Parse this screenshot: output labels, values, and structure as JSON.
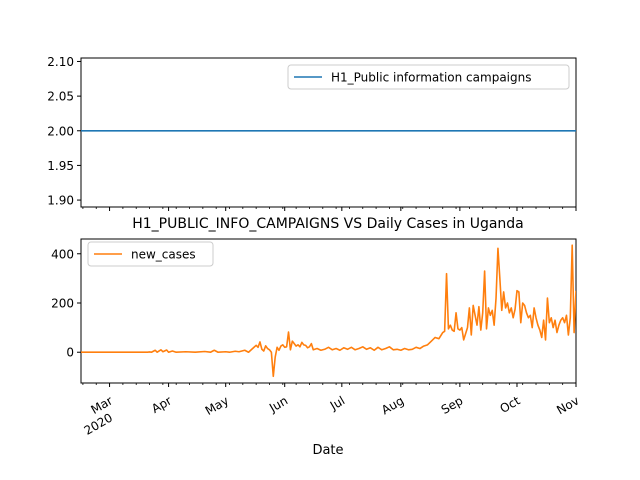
{
  "chart_data": [
    {
      "type": "line",
      "title": "",
      "xlabel": "",
      "ylabel": "",
      "ylim": [
        1.89,
        2.105
      ],
      "yticks": [
        "1.90",
        "1.95",
        "2.00",
        "2.05",
        "2.10"
      ],
      "ytick_values": [
        1.9,
        1.95,
        2.0,
        2.05,
        2.1
      ],
      "x_range": [
        "2020-02-15",
        "2020-11-01"
      ],
      "x": [
        "2020-02-15",
        "2020-11-01"
      ],
      "series": [
        {
          "name": "H1_Public information campaigns",
          "color": "#1f77b4",
          "values": [
            2.0,
            2.0
          ]
        }
      ],
      "legend": "upper right",
      "grid": false
    },
    {
      "type": "line",
      "title": "H1_PUBLIC_INFO_CAMPAIGNS VS Daily Cases in Uganda",
      "xlabel": "Date",
      "ylabel": "",
      "ylim": [
        -125,
        460
      ],
      "yticks": [
        "0",
        "200",
        "400"
      ],
      "ytick_values": [
        0,
        200,
        400
      ],
      "x_range": [
        "2020-02-15",
        "2020-11-01"
      ],
      "xtick_labels": [
        {
          "date": "2020-03-01",
          "label": "Mar",
          "sub": "2020"
        },
        {
          "date": "2020-04-01",
          "label": "Apr"
        },
        {
          "date": "2020-05-01",
          "label": "May"
        },
        {
          "date": "2020-06-01",
          "label": "Jun"
        },
        {
          "date": "2020-07-01",
          "label": "Jul"
        },
        {
          "date": "2020-08-01",
          "label": "Aug"
        },
        {
          "date": "2020-09-01",
          "label": "Sep"
        },
        {
          "date": "2020-10-01",
          "label": "Oct"
        },
        {
          "date": "2020-11-01",
          "label": "Nov"
        }
      ],
      "legend": "upper left",
      "grid": false,
      "series": [
        {
          "name": "new_cases",
          "color": "#ff7f0e",
          "points": [
            [
              "2020-02-15",
              0
            ],
            [
              "2020-03-21",
              0
            ],
            [
              "2020-03-22",
              1
            ],
            [
              "2020-03-23",
              0
            ],
            [
              "2020-03-25",
              8
            ],
            [
              "2020-03-26",
              0
            ],
            [
              "2020-03-28",
              10
            ],
            [
              "2020-03-29",
              2
            ],
            [
              "2020-03-31",
              9
            ],
            [
              "2020-04-01",
              0
            ],
            [
              "2020-04-03",
              5
            ],
            [
              "2020-04-05",
              0
            ],
            [
              "2020-04-10",
              2
            ],
            [
              "2020-04-15",
              0
            ],
            [
              "2020-04-20",
              3
            ],
            [
              "2020-04-23",
              0
            ],
            [
              "2020-04-25",
              8
            ],
            [
              "2020-04-27",
              0
            ],
            [
              "2020-05-01",
              2
            ],
            [
              "2020-05-03",
              0
            ],
            [
              "2020-05-06",
              4
            ],
            [
              "2020-05-08",
              2
            ],
            [
              "2020-05-11",
              8
            ],
            [
              "2020-05-13",
              0
            ],
            [
              "2020-05-15",
              14
            ],
            [
              "2020-05-17",
              28
            ],
            [
              "2020-05-18",
              20
            ],
            [
              "2020-05-19",
              42
            ],
            [
              "2020-05-20",
              12
            ],
            [
              "2020-05-21",
              5
            ],
            [
              "2020-05-22",
              26
            ],
            [
              "2020-05-23",
              15
            ],
            [
              "2020-05-24",
              10
            ],
            [
              "2020-05-25",
              0
            ],
            [
              "2020-05-26",
              -98
            ],
            [
              "2020-05-27",
              -20
            ],
            [
              "2020-05-28",
              20
            ],
            [
              "2020-05-29",
              8
            ],
            [
              "2020-05-30",
              25
            ],
            [
              "2020-05-31",
              30
            ],
            [
              "2020-06-01",
              20
            ],
            [
              "2020-06-02",
              22
            ],
            [
              "2020-06-03",
              82
            ],
            [
              "2020-06-04",
              10
            ],
            [
              "2020-06-05",
              45
            ],
            [
              "2020-06-06",
              35
            ],
            [
              "2020-06-07",
              25
            ],
            [
              "2020-06-08",
              30
            ],
            [
              "2020-06-09",
              22
            ],
            [
              "2020-06-10",
              40
            ],
            [
              "2020-06-11",
              30
            ],
            [
              "2020-06-12",
              28
            ],
            [
              "2020-06-13",
              18
            ],
            [
              "2020-06-14",
              22
            ],
            [
              "2020-06-15",
              35
            ],
            [
              "2020-06-16",
              10
            ],
            [
              "2020-06-18",
              15
            ],
            [
              "2020-06-20",
              8
            ],
            [
              "2020-06-22",
              12
            ],
            [
              "2020-06-24",
              20
            ],
            [
              "2020-06-26",
              10
            ],
            [
              "2020-06-28",
              15
            ],
            [
              "2020-06-30",
              8
            ],
            [
              "2020-07-02",
              18
            ],
            [
              "2020-07-04",
              12
            ],
            [
              "2020-07-06",
              20
            ],
            [
              "2020-07-08",
              10
            ],
            [
              "2020-07-10",
              15
            ],
            [
              "2020-07-12",
              22
            ],
            [
              "2020-07-14",
              12
            ],
            [
              "2020-07-16",
              18
            ],
            [
              "2020-07-18",
              8
            ],
            [
              "2020-07-20",
              20
            ],
            [
              "2020-07-22",
              10
            ],
            [
              "2020-07-24",
              15
            ],
            [
              "2020-07-26",
              22
            ],
            [
              "2020-07-28",
              10
            ],
            [
              "2020-07-30",
              12
            ],
            [
              "2020-08-01",
              8
            ],
            [
              "2020-08-03",
              15
            ],
            [
              "2020-08-05",
              10
            ],
            [
              "2020-08-07",
              12
            ],
            [
              "2020-08-09",
              20
            ],
            [
              "2020-08-11",
              15
            ],
            [
              "2020-08-13",
              25
            ],
            [
              "2020-08-15",
              30
            ],
            [
              "2020-08-17",
              45
            ],
            [
              "2020-08-19",
              60
            ],
            [
              "2020-08-21",
              55
            ],
            [
              "2020-08-23",
              80
            ],
            [
              "2020-08-24",
              85
            ],
            [
              "2020-08-25",
              319
            ],
            [
              "2020-08-26",
              95
            ],
            [
              "2020-08-27",
              110
            ],
            [
              "2020-08-28",
              90
            ],
            [
              "2020-08-29",
              85
            ],
            [
              "2020-08-30",
              160
            ],
            [
              "2020-08-31",
              95
            ],
            [
              "2020-09-01",
              90
            ],
            [
              "2020-09-02",
              100
            ],
            [
              "2020-09-03",
              50
            ],
            [
              "2020-09-04",
              75
            ],
            [
              "2020-09-05",
              100
            ],
            [
              "2020-09-06",
              180
            ],
            [
              "2020-09-07",
              70
            ],
            [
              "2020-09-08",
              190
            ],
            [
              "2020-09-09",
              150
            ],
            [
              "2020-09-10",
              110
            ],
            [
              "2020-09-11",
              185
            ],
            [
              "2020-09-12",
              90
            ],
            [
              "2020-09-13",
              160
            ],
            [
              "2020-09-14",
              330
            ],
            [
              "2020-09-15",
              95
            ],
            [
              "2020-09-16",
              180
            ],
            [
              "2020-09-17",
              150
            ],
            [
              "2020-09-18",
              170
            ],
            [
              "2020-09-19",
              110
            ],
            [
              "2020-09-20",
              220
            ],
            [
              "2020-09-21",
              422
            ],
            [
              "2020-09-22",
              300
            ],
            [
              "2020-09-23",
              170
            ],
            [
              "2020-09-24",
              245
            ],
            [
              "2020-09-25",
              180
            ],
            [
              "2020-09-26",
              200
            ],
            [
              "2020-09-27",
              160
            ],
            [
              "2020-09-28",
              180
            ],
            [
              "2020-09-29",
              140
            ],
            [
              "2020-09-30",
              175
            ],
            [
              "2020-10-01",
              250
            ],
            [
              "2020-10-02",
              245
            ],
            [
              "2020-10-03",
              120
            ],
            [
              "2020-10-04",
              200
            ],
            [
              "2020-10-05",
              190
            ],
            [
              "2020-10-06",
              160
            ],
            [
              "2020-10-07",
              140
            ],
            [
              "2020-10-08",
              150
            ],
            [
              "2020-10-09",
              100
            ],
            [
              "2020-10-10",
              180
            ],
            [
              "2020-10-11",
              140
            ],
            [
              "2020-10-12",
              110
            ],
            [
              "2020-10-13",
              90
            ],
            [
              "2020-10-14",
              60
            ],
            [
              "2020-10-15",
              130
            ],
            [
              "2020-10-16",
              50
            ],
            [
              "2020-10-17",
              220
            ],
            [
              "2020-10-18",
              120
            ],
            [
              "2020-10-19",
              140
            ],
            [
              "2020-10-20",
              100
            ],
            [
              "2020-10-21",
              130
            ],
            [
              "2020-10-22",
              80
            ],
            [
              "2020-10-23",
              110
            ],
            [
              "2020-10-24",
              130
            ],
            [
              "2020-10-25",
              140
            ],
            [
              "2020-10-26",
              120
            ],
            [
              "2020-10-27",
              150
            ],
            [
              "2020-10-28",
              70
            ],
            [
              "2020-10-29",
              140
            ],
            [
              "2020-10-30",
              435
            ],
            [
              "2020-10-31",
              80
            ],
            [
              "2020-11-01",
              250
            ]
          ]
        }
      ]
    }
  ]
}
